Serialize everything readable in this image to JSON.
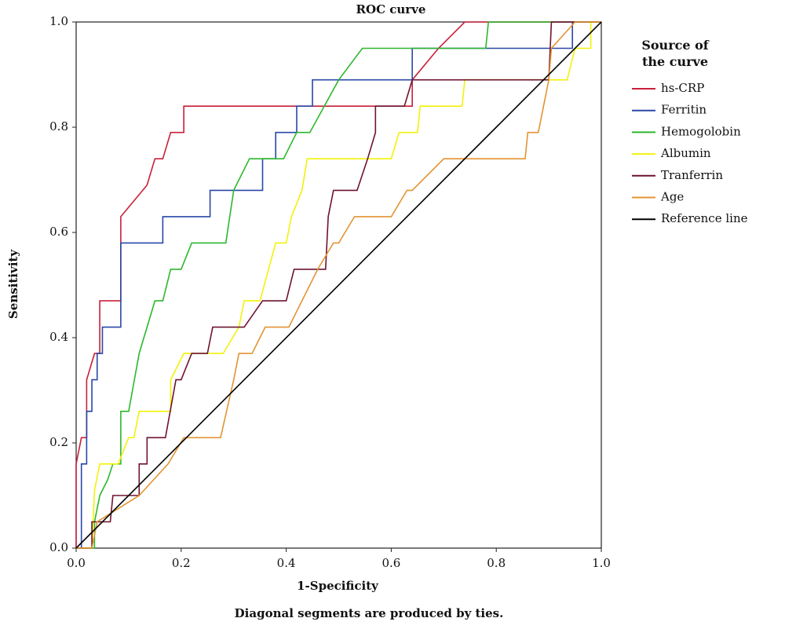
{
  "chart_data": {
    "type": "line",
    "title": "ROC curve",
    "xlabel": "1-Specificity",
    "ylabel": "Sensitivity",
    "note": "Diagonal segments are produced by ties.",
    "legend_title": "Source of the curve",
    "legend": "right",
    "xlim": [
      0,
      1
    ],
    "ylim": [
      0,
      1
    ],
    "xticks": [
      {
        "value": 0,
        "label": "0.0"
      },
      0.2,
      0.4,
      0.6,
      0.8,
      {
        "value": 1,
        "label": "1.0"
      }
    ],
    "yticks": [
      {
        "value": 0,
        "label": "0.0"
      },
      0.2,
      0.4,
      0.6,
      0.8,
      {
        "value": 1,
        "label": "1.0"
      }
    ],
    "series": [
      {
        "name": "hs-CRP",
        "color": "#c8203a",
        "x": [
          0,
          0,
          0.01,
          0.02,
          0.02,
          0.035,
          0.045,
          0.045,
          0.085,
          0.085,
          0.135,
          0.15,
          0.165,
          0.18,
          0.205,
          0.205,
          0.64,
          0.64,
          0.69,
          0.74,
          1
        ],
        "values": [
          0,
          0.16,
          0.21,
          0.21,
          0.32,
          0.37,
          0.37,
          0.47,
          0.47,
          0.63,
          0.69,
          0.74,
          0.74,
          0.79,
          0.79,
          0.84,
          0.84,
          0.89,
          0.95,
          1,
          1
        ]
      },
      {
        "name": "Ferritin",
        "color": "#2848a8",
        "x": [
          0,
          0.01,
          0.01,
          0.02,
          0.02,
          0.03,
          0.03,
          0.04,
          0.04,
          0.05,
          0.05,
          0.085,
          0.085,
          0.165,
          0.165,
          0.255,
          0.255,
          0.355,
          0.355,
          0.38,
          0.38,
          0.42,
          0.42,
          0.45,
          0.45,
          0.64,
          0.64,
          0.945,
          0.945,
          1
        ],
        "values": [
          0,
          0,
          0.16,
          0.16,
          0.26,
          0.26,
          0.32,
          0.32,
          0.37,
          0.37,
          0.42,
          0.42,
          0.58,
          0.58,
          0.63,
          0.63,
          0.68,
          0.68,
          0.74,
          0.74,
          0.79,
          0.79,
          0.84,
          0.84,
          0.89,
          0.89,
          0.95,
          0.95,
          1,
          1
        ]
      },
      {
        "name": "Hemogolobin",
        "color": "#2cb82c",
        "x": [
          0,
          0.035,
          0.035,
          0.045,
          0.06,
          0.07,
          0.085,
          0.085,
          0.1,
          0.12,
          0.15,
          0.165,
          0.18,
          0.2,
          0.22,
          0.285,
          0.3,
          0.33,
          0.395,
          0.42,
          0.445,
          0.5,
          0.545,
          0.78,
          0.785,
          1
        ],
        "values": [
          0,
          0,
          0.05,
          0.1,
          0.13,
          0.16,
          0.16,
          0.26,
          0.26,
          0.37,
          0.47,
          0.47,
          0.53,
          0.53,
          0.58,
          0.58,
          0.68,
          0.74,
          0.74,
          0.79,
          0.79,
          0.89,
          0.95,
          0.95,
          1,
          1
        ]
      },
      {
        "name": "Albumin",
        "color": "#f2f20a",
        "x": [
          0,
          0.03,
          0.035,
          0.045,
          0.08,
          0.1,
          0.11,
          0.12,
          0.18,
          0.18,
          0.205,
          0.28,
          0.31,
          0.32,
          0.35,
          0.38,
          0.4,
          0.41,
          0.43,
          0.44,
          0.6,
          0.615,
          0.65,
          0.655,
          0.735,
          0.74,
          0.935,
          0.95,
          0.98,
          0.98,
          1
        ],
        "values": [
          0,
          0,
          0.11,
          0.16,
          0.16,
          0.21,
          0.21,
          0.26,
          0.26,
          0.32,
          0.37,
          0.37,
          0.42,
          0.47,
          0.47,
          0.58,
          0.58,
          0.63,
          0.68,
          0.74,
          0.74,
          0.79,
          0.79,
          0.84,
          0.84,
          0.89,
          0.89,
          0.95,
          0.95,
          1,
          1
        ]
      },
      {
        "name": "Tranferrin",
        "color": "#6e1430",
        "x": [
          0,
          0.03,
          0.03,
          0.065,
          0.07,
          0.12,
          0.12,
          0.135,
          0.135,
          0.17,
          0.19,
          0.2,
          0.22,
          0.25,
          0.26,
          0.32,
          0.355,
          0.4,
          0.415,
          0.475,
          0.48,
          0.49,
          0.535,
          0.555,
          0.57,
          0.57,
          0.625,
          0.64,
          0.9,
          0.905,
          1
        ],
        "values": [
          0,
          0,
          0.05,
          0.05,
          0.1,
          0.1,
          0.16,
          0.16,
          0.21,
          0.21,
          0.32,
          0.32,
          0.37,
          0.37,
          0.42,
          0.42,
          0.47,
          0.47,
          0.53,
          0.53,
          0.63,
          0.68,
          0.68,
          0.74,
          0.79,
          0.84,
          0.84,
          0.89,
          0.89,
          1,
          1
        ]
      },
      {
        "name": "Age",
        "color": "#e39433",
        "x": [
          0,
          0.03,
          0.04,
          0.12,
          0.175,
          0.205,
          0.275,
          0.3,
          0.31,
          0.335,
          0.36,
          0.405,
          0.43,
          0.46,
          0.49,
          0.5,
          0.53,
          0.6,
          0.63,
          0.64,
          0.7,
          0.855,
          0.86,
          0.88,
          0.89,
          0.9,
          0.905,
          0.95,
          1
        ],
        "values": [
          0,
          0,
          0.05,
          0.1,
          0.16,
          0.21,
          0.21,
          0.32,
          0.37,
          0.37,
          0.42,
          0.42,
          0.47,
          0.53,
          0.58,
          0.58,
          0.63,
          0.63,
          0.68,
          0.68,
          0.74,
          0.74,
          0.79,
          0.79,
          0.84,
          0.89,
          0.95,
          1,
          1
        ]
      },
      {
        "name": "Reference line",
        "color": "#000000",
        "x": [
          0,
          1
        ],
        "values": [
          0,
          1
        ]
      }
    ]
  }
}
